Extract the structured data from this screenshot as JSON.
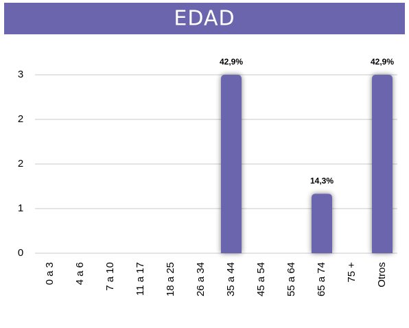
{
  "chart_data": {
    "type": "bar",
    "title": "EDAD",
    "categories": [
      "0 a 3",
      "4 a 6",
      "7 a 10",
      "11 a 17",
      "18 a 25",
      "26 a 34",
      "35 a 44",
      "45 a 54",
      "55 a 64",
      "65 a 74",
      "75 +",
      "Otros"
    ],
    "values": [
      0,
      0,
      0,
      0,
      0,
      0,
      3,
      0,
      0,
      1,
      0,
      3
    ],
    "value_labels": [
      null,
      null,
      null,
      null,
      null,
      null,
      "42,9%",
      null,
      null,
      "14,3%",
      null,
      "42,9%"
    ],
    "color": "#6a65ad",
    "ylim": [
      0,
      3
    ],
    "yticks": [
      0,
      {
        "value": 0.75,
        "label": "1"
      },
      {
        "value": 1.5,
        "label": "2"
      },
      {
        "value": 2.25,
        "label": "2"
      },
      3
    ],
    "grid": true
  }
}
